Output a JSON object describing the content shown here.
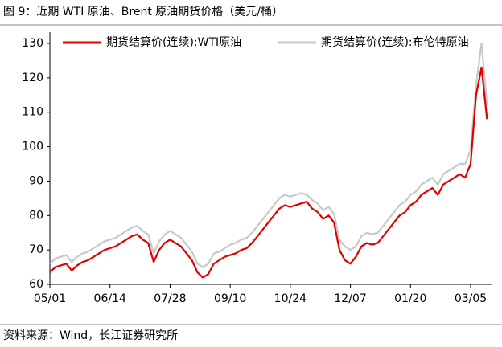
{
  "header": {
    "title": "图 9：近期 WTI 原油、Brent 原油期货价格（美元/桶）"
  },
  "chart_data": {
    "type": "line",
    "categories": [
      "05/01",
      null,
      null,
      null,
      null,
      null,
      null,
      null,
      null,
      null,
      null,
      "06/14",
      null,
      null,
      null,
      null,
      null,
      null,
      null,
      null,
      null,
      null,
      "07/28",
      null,
      null,
      null,
      null,
      null,
      null,
      null,
      null,
      null,
      null,
      "09/10",
      null,
      null,
      null,
      null,
      null,
      null,
      null,
      null,
      null,
      null,
      "10/24",
      null,
      null,
      null,
      null,
      null,
      null,
      null,
      null,
      null,
      null,
      "12/07",
      null,
      null,
      null,
      null,
      null,
      null,
      null,
      null,
      null,
      null,
      "01/20",
      null,
      null,
      null,
      null,
      null,
      null,
      null,
      null,
      null,
      null,
      "03/05",
      null,
      null,
      null
    ],
    "series": [
      {
        "name": "期货结算价(连续):WTI原油",
        "color": "#e00000",
        "values": [
          63.5,
          65,
          65.5,
          66,
          64,
          65.5,
          66.5,
          67,
          68,
          69,
          70,
          70.5,
          71,
          72,
          73,
          74,
          74.5,
          73,
          72,
          66.5,
          70,
          72,
          73,
          72,
          71,
          69,
          67,
          63.5,
          62,
          63,
          66,
          67,
          68,
          68.5,
          69,
          70,
          70.5,
          72,
          74,
          76,
          78,
          80,
          82,
          83,
          82.5,
          83,
          83.5,
          84,
          82,
          81,
          79,
          80,
          78,
          70,
          67,
          66,
          68,
          71,
          72,
          71.5,
          72,
          74,
          76,
          78,
          80,
          81,
          83,
          84,
          86,
          87,
          88,
          86,
          89,
          90,
          91,
          92,
          91,
          95,
          115,
          123,
          108
        ]
      },
      {
        "name": "期货结算价(连续):布伦特原油",
        "color": "#c8c8c8",
        "values": [
          66,
          67.5,
          68,
          68.5,
          66.5,
          68,
          69,
          69.5,
          70.5,
          71.5,
          72.5,
          73,
          73.5,
          74.5,
          75.5,
          76.5,
          77,
          75.5,
          74.5,
          69,
          72.5,
          74.5,
          75.5,
          74.5,
          73.5,
          71.5,
          69.5,
          66,
          65,
          66,
          69,
          69.5,
          70.5,
          71.5,
          72,
          73,
          73.5,
          75,
          77,
          79,
          81,
          83,
          85,
          86,
          85.5,
          86,
          86.5,
          86,
          84.5,
          83.5,
          81.5,
          82.5,
          80.5,
          73,
          71,
          70,
          71,
          74,
          75,
          74.5,
          75,
          77,
          79,
          81,
          83,
          84,
          86,
          87,
          89,
          90,
          91,
          89,
          92,
          93,
          94,
          95,
          95,
          99,
          118,
          130,
          112
        ]
      }
    ],
    "ylim": [
      60,
      130
    ],
    "yticks": [
      60,
      70,
      80,
      90,
      100,
      110,
      120,
      130
    ]
  },
  "footer": {
    "source": "资料来源：Wind，长江证券研究所"
  }
}
